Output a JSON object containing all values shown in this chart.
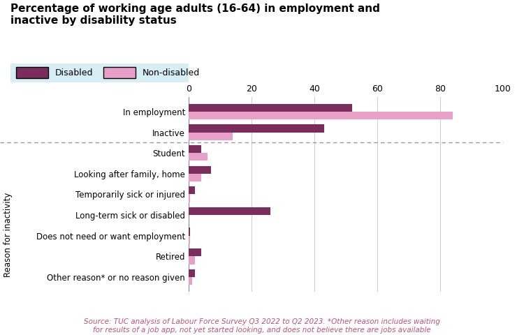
{
  "title": "Percentage of working age adults (16-64) in employment and\ninactive by disability status",
  "legend_labels": [
    "Disabled",
    "Non-disabled"
  ],
  "disabled_color": "#7B2D5E",
  "nondisabled_color": "#E8A0C8",
  "background_color": "#FFFFFF",
  "legend_bg_color": "#D6EEF4",
  "categories": [
    "In employment",
    "Inactive",
    "Student",
    "Looking after family, home",
    "Temporarily sick or injured",
    "Long-term sick or disabled",
    "Does not need or want employment",
    "Retired",
    "Other reason* or no reason given"
  ],
  "disabled_values": [
    52,
    43,
    4,
    7,
    2,
    26,
    0.5,
    4,
    2
  ],
  "nondisabled_values": [
    84,
    14,
    6,
    4,
    0.5,
    0,
    0.5,
    2,
    1
  ],
  "xlim": [
    0,
    100
  ],
  "xticks": [
    0,
    20,
    40,
    60,
    80,
    100
  ],
  "bar_height": 0.38,
  "figsize": [
    7.5,
    4.8
  ],
  "dpi": 100,
  "ylabel_rotated": "Reason for inactivity",
  "source_text": "Source: TUC analysis of Labour Force Survey Q3 2022 to Q2 2023. *Other reason includes waiting\nfor results of a job app, not yet started looking, and does not believe there are jobs available",
  "source_color": "#C05078"
}
